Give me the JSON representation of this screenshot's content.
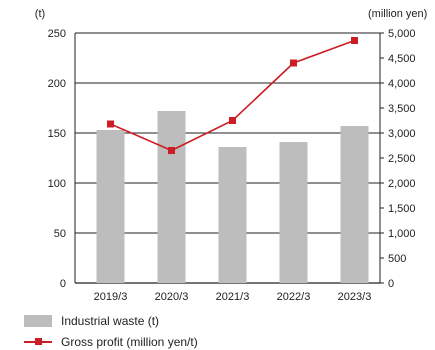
{
  "chart_data": {
    "type": "bar",
    "categories": [
      "2019/3",
      "2020/3",
      "2021/3",
      "2022/3",
      "2023/3"
    ],
    "series": [
      {
        "name": "Industrial waste (t)",
        "type": "bar",
        "axis": "left",
        "values": [
          153,
          172,
          136,
          141,
          157
        ],
        "color": "#bdbdbd"
      },
      {
        "name": "Gross profit (million yen/t)",
        "type": "line",
        "axis": "right",
        "values": [
          3180,
          2650,
          3250,
          4400,
          4850
        ],
        "color": "#cc1d25"
      }
    ],
    "left_axis": {
      "unit_label": "(t)",
      "ylim": [
        0,
        250
      ],
      "ticks": [
        0,
        50,
        100,
        150,
        200,
        250
      ],
      "tick_labels": [
        "0",
        "50",
        "100",
        "150",
        "200",
        "250"
      ]
    },
    "right_axis": {
      "unit_label": "(million yen)",
      "ylim": [
        0,
        5000
      ],
      "ticks": [
        0,
        500,
        1000,
        1500,
        2000,
        2500,
        3000,
        3500,
        4000,
        4500,
        5000
      ],
      "tick_labels": [
        "0",
        "500",
        "1,000",
        "1,500",
        "2,000",
        "2,500",
        "3,000",
        "3,500",
        "4,000",
        "4,500",
        "5,000"
      ]
    },
    "grid": true,
    "legend_position": "bottom-left"
  }
}
